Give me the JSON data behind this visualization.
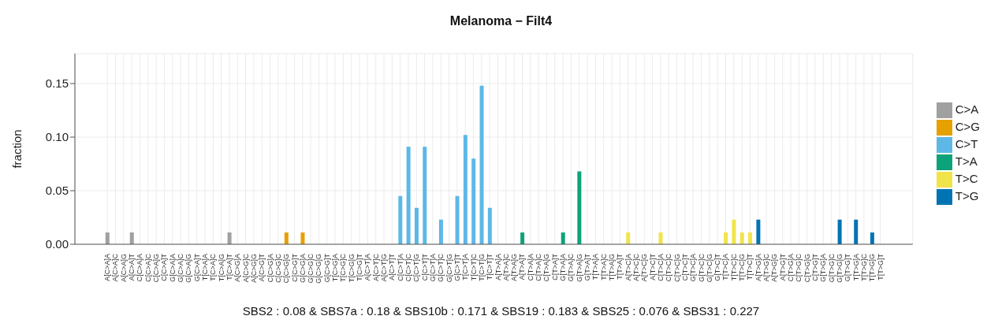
{
  "chart_data": {
    "type": "bar",
    "title": "Melanoma − Filt4",
    "ylabel": "fraction",
    "annotations": [
      "SBS2 : 0.08 & SBS7a : 0.18 & SBS10b : 0.171 & SBS19 : 0.183 & SBS25 : 0.076 & SBS31 : 0.227"
    ],
    "categories": [
      "A[C>A]A",
      "A[C>A]C",
      "A[C>A]G",
      "A[C>A]T",
      "C[C>A]A",
      "C[C>A]C",
      "C[C>A]G",
      "C[C>A]T",
      "G[C>A]A",
      "G[C>A]C",
      "G[C>A]G",
      "G[C>A]T",
      "T[C>A]A",
      "T[C>A]C",
      "T[C>A]G",
      "T[C>A]T",
      "A[C>G]A",
      "A[C>G]C",
      "A[C>G]G",
      "A[C>G]T",
      "C[C>G]A",
      "C[C>G]C",
      "C[C>G]G",
      "C[C>G]T",
      "G[C>G]A",
      "G[C>G]C",
      "G[C>G]G",
      "G[C>G]T",
      "T[C>G]A",
      "T[C>G]C",
      "T[C>G]G",
      "T[C>G]T",
      "A[C>T]A",
      "A[C>T]C",
      "A[C>T]G",
      "A[C>T]T",
      "C[C>T]A",
      "C[C>T]C",
      "C[C>T]G",
      "C[C>T]T",
      "G[C>T]A",
      "G[C>T]C",
      "G[C>T]G",
      "G[C>T]T",
      "T[C>T]A",
      "T[C>T]C",
      "T[C>T]G",
      "T[C>T]T",
      "A[T>A]A",
      "A[T>A]C",
      "A[T>A]G",
      "A[T>A]T",
      "C[T>A]A",
      "C[T>A]C",
      "C[T>A]G",
      "C[T>A]T",
      "G[T>A]A",
      "G[T>A]C",
      "G[T>A]G",
      "G[T>A]T",
      "T[T>A]A",
      "T[T>A]C",
      "T[T>A]G",
      "T[T>A]T",
      "A[T>C]A",
      "A[T>C]C",
      "A[T>C]G",
      "A[T>C]T",
      "C[T>C]A",
      "C[T>C]C",
      "C[T>C]G",
      "C[T>C]T",
      "G[T>C]A",
      "G[T>C]C",
      "G[T>C]G",
      "G[T>C]T",
      "T[T>C]A",
      "T[T>C]C",
      "T[T>C]G",
      "T[T>C]T",
      "A[T>G]A",
      "A[T>G]C",
      "A[T>G]G",
      "A[T>G]T",
      "C[T>G]A",
      "C[T>G]C",
      "C[T>G]G",
      "C[T>G]T",
      "G[T>G]A",
      "G[T>G]C",
      "G[T>G]G",
      "G[T>G]T",
      "T[T>G]A",
      "T[T>G]C",
      "T[T>G]G",
      "T[T>G]T"
    ],
    "series": [
      {
        "name": "C>A",
        "color": "#a0a0a0",
        "values": [
          0.011,
          0,
          0,
          0.011,
          0,
          0,
          0,
          0,
          0,
          0,
          0,
          0,
          0,
          0,
          0,
          0.011,
          null,
          null,
          null,
          null,
          null,
          null,
          null,
          null,
          null,
          null,
          null,
          null,
          null,
          null,
          null,
          null,
          null,
          null,
          null,
          null,
          null,
          null,
          null,
          null,
          null,
          null,
          null,
          null,
          null,
          null,
          null,
          null,
          null,
          null,
          null,
          null,
          null,
          null,
          null,
          null,
          null,
          null,
          null,
          null,
          null,
          null,
          null,
          null,
          null,
          null,
          null,
          null,
          null,
          null,
          null,
          null,
          null,
          null,
          null,
          null,
          null,
          null,
          null,
          null,
          null,
          null,
          null,
          null,
          null,
          null,
          null,
          null,
          null,
          null,
          null,
          null,
          null,
          null,
          null,
          null
        ]
      },
      {
        "name": "C>G",
        "color": "#e6a000",
        "values": [
          null,
          null,
          null,
          null,
          null,
          null,
          null,
          null,
          null,
          null,
          null,
          null,
          null,
          null,
          null,
          null,
          0,
          0,
          0,
          0,
          0,
          0,
          0.011,
          0,
          0.011,
          0,
          0,
          0,
          0,
          0,
          0,
          0,
          null,
          null,
          null,
          null,
          null,
          null,
          null,
          null,
          null,
          null,
          null,
          null,
          null,
          null,
          null,
          null,
          null,
          null,
          null,
          null,
          null,
          null,
          null,
          null,
          null,
          null,
          null,
          null,
          null,
          null,
          null,
          null,
          null,
          null,
          null,
          null,
          null,
          null,
          null,
          null,
          null,
          null,
          null,
          null,
          null,
          null,
          null,
          null,
          null,
          null,
          null,
          null,
          null,
          null,
          null,
          null,
          null,
          null,
          null,
          null,
          null,
          null,
          null,
          null
        ]
      },
      {
        "name": "C>T",
        "color": "#5db8e6",
        "values": [
          null,
          null,
          null,
          null,
          null,
          null,
          null,
          null,
          null,
          null,
          null,
          null,
          null,
          null,
          null,
          null,
          null,
          null,
          null,
          null,
          null,
          null,
          null,
          null,
          null,
          null,
          null,
          null,
          null,
          null,
          null,
          null,
          0,
          0,
          0,
          0,
          0.045,
          0.091,
          0.034,
          0.091,
          0,
          0.023,
          0,
          0.045,
          0.102,
          0.08,
          0.148,
          0.034,
          null,
          null,
          null,
          null,
          null,
          null,
          null,
          null,
          null,
          null,
          null,
          null,
          null,
          null,
          null,
          null,
          null,
          null,
          null,
          null,
          null,
          null,
          null,
          null,
          null,
          null,
          null,
          null,
          null,
          null,
          null,
          null,
          null,
          null,
          null,
          null,
          null,
          null,
          null,
          null,
          null,
          null,
          null,
          null,
          null,
          null,
          null,
          null
        ]
      },
      {
        "name": "T>A",
        "color": "#0ca37a",
        "values": [
          null,
          null,
          null,
          null,
          null,
          null,
          null,
          null,
          null,
          null,
          null,
          null,
          null,
          null,
          null,
          null,
          null,
          null,
          null,
          null,
          null,
          null,
          null,
          null,
          null,
          null,
          null,
          null,
          null,
          null,
          null,
          null,
          null,
          null,
          null,
          null,
          null,
          null,
          null,
          null,
          null,
          null,
          null,
          null,
          null,
          null,
          null,
          null,
          0,
          0,
          0,
          0.011,
          0,
          0,
          0,
          0,
          0.011,
          0,
          0.068,
          0,
          0,
          0,
          0,
          0,
          null,
          null,
          null,
          null,
          null,
          null,
          null,
          null,
          null,
          null,
          null,
          null,
          null,
          null,
          null,
          null,
          null,
          null,
          null,
          null,
          null,
          null,
          null,
          null,
          null,
          null,
          null,
          null,
          null,
          null,
          null,
          null
        ]
      },
      {
        "name": "T>C",
        "color": "#f0e44a",
        "values": [
          null,
          null,
          null,
          null,
          null,
          null,
          null,
          null,
          null,
          null,
          null,
          null,
          null,
          null,
          null,
          null,
          null,
          null,
          null,
          null,
          null,
          null,
          null,
          null,
          null,
          null,
          null,
          null,
          null,
          null,
          null,
          null,
          null,
          null,
          null,
          null,
          null,
          null,
          null,
          null,
          null,
          null,
          null,
          null,
          null,
          null,
          null,
          null,
          null,
          null,
          null,
          null,
          null,
          null,
          null,
          null,
          null,
          null,
          null,
          null,
          null,
          null,
          null,
          null,
          0.011,
          0,
          0,
          0,
          0.011,
          0,
          0,
          0,
          0,
          0,
          0,
          0,
          0.011,
          0.023,
          0.011,
          0.011,
          null,
          null,
          null,
          null,
          null,
          null,
          null,
          null,
          null,
          null,
          null,
          null,
          null,
          null,
          null,
          null
        ]
      },
      {
        "name": "T>G",
        "color": "#0073b3",
        "values": [
          null,
          null,
          null,
          null,
          null,
          null,
          null,
          null,
          null,
          null,
          null,
          null,
          null,
          null,
          null,
          null,
          null,
          null,
          null,
          null,
          null,
          null,
          null,
          null,
          null,
          null,
          null,
          null,
          null,
          null,
          null,
          null,
          null,
          null,
          null,
          null,
          null,
          null,
          null,
          null,
          null,
          null,
          null,
          null,
          null,
          null,
          null,
          null,
          null,
          null,
          null,
          null,
          null,
          null,
          null,
          null,
          null,
          null,
          null,
          null,
          null,
          null,
          null,
          null,
          null,
          null,
          null,
          null,
          null,
          null,
          null,
          null,
          null,
          null,
          null,
          null,
          null,
          null,
          null,
          null,
          0.023,
          0,
          0,
          0,
          0,
          0,
          0,
          0,
          0,
          0,
          0.023,
          0,
          0.023,
          0,
          0.011,
          0
        ]
      }
    ],
    "stacked": true,
    "ylim": [
      0,
      0.178
    ],
    "yticks": [
      {
        "value": 0,
        "label": "0.00"
      },
      {
        "value": 0.05,
        "label": "0.05"
      },
      {
        "value": 0.1,
        "label": "0.10"
      },
      {
        "value": 0.15,
        "label": "0.15"
      }
    ],
    "grid": true,
    "legend": "right"
  }
}
